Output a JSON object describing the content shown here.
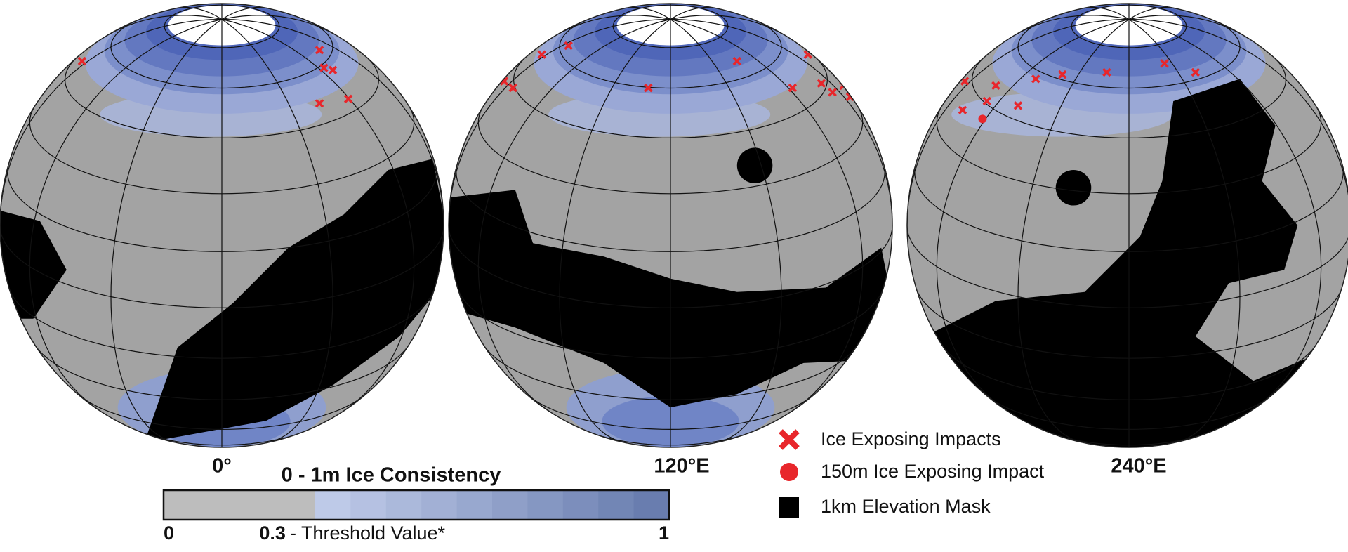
{
  "globes": [
    {
      "label": "0°"
    },
    {
      "label": "120°E"
    },
    {
      "label": "240°E"
    }
  ],
  "colorbar": {
    "title": "0 - 1m Ice Consistency",
    "min": 0,
    "max": 1,
    "threshold": 0.3,
    "threshold_note": "- Threshold Value*"
  },
  "legend": [
    {
      "label": "Ice Exposing Impacts"
    },
    {
      "label": "150m Ice Exposing Impact"
    },
    {
      "label": "1km Elevation Mask"
    }
  ]
}
